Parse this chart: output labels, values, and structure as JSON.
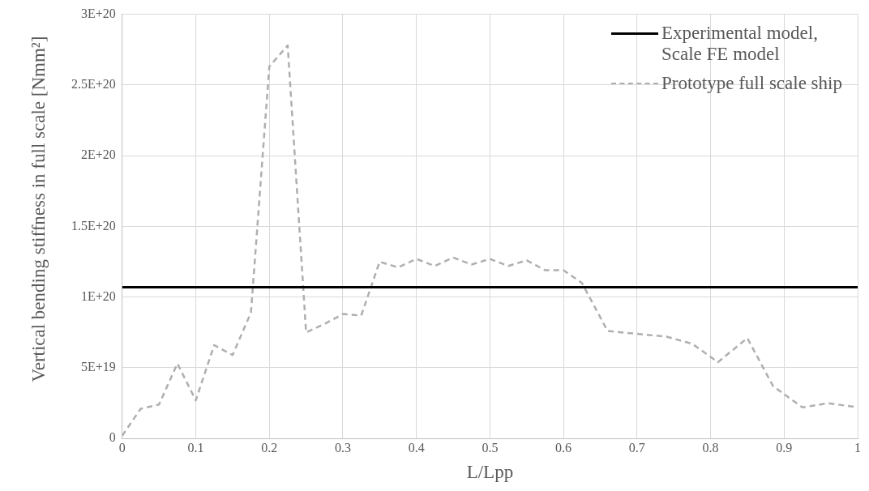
{
  "chart_data": {
    "type": "line",
    "xlabel": "L/Lpp",
    "ylabel": "Vertical bending stiffness in full scale [Nmm²]",
    "xlim": [
      0,
      1
    ],
    "xticks": [
      0,
      0.1,
      0.2,
      0.3,
      0.4,
      0.5,
      0.6,
      0.7,
      0.8,
      0.9,
      1
    ],
    "ylim": [
      0,
      3e+20
    ],
    "yticks": [
      {
        "value": 0,
        "label": "0"
      },
      {
        "value": 5e+19,
        "label": "5E+19"
      },
      {
        "value": 1e+20,
        "label": "1E+20"
      },
      {
        "value": 1.5e+20,
        "label": "1.5E+20"
      },
      {
        "value": 2e+20,
        "label": "2E+20"
      },
      {
        "value": 2.5e+20,
        "label": "2.5E+20"
      },
      {
        "value": 3e+20,
        "label": "3E+20"
      }
    ],
    "grid": true,
    "legend": "top right",
    "marker": "none",
    "series": [
      {
        "name": "Experimental model, Scale FE model",
        "color": "#000000",
        "line_style": "solid",
        "x": [
          0,
          1
        ],
        "values": [
          1.07e+20,
          1.07e+20
        ]
      },
      {
        "name": "Prototype full scale ship",
        "color": "#b0aeae",
        "line_style": "dashed",
        "x": [
          0,
          0.025,
          0.05,
          0.075,
          0.1,
          0.125,
          0.15,
          0.175,
          0.2,
          0.225,
          0.25,
          0.275,
          0.3,
          0.325,
          0.35,
          0.375,
          0.4,
          0.425,
          0.45,
          0.475,
          0.5,
          0.525,
          0.55,
          0.575,
          0.6,
          0.625,
          0.66,
          0.7,
          0.74,
          0.775,
          0.81,
          0.85,
          0.885,
          0.925,
          0.96,
          1
        ],
        "values": [
          2e+18,
          2.1e+19,
          2.4e+19,
          5.3e+19,
          2.7e+19,
          6.6e+19,
          5.9e+19,
          8.9e+19,
          2.63e+20,
          2.78e+20,
          7.5e+19,
          8.1e+19,
          8.8e+19,
          8.7e+19,
          1.25e+20,
          1.21e+20,
          1.27e+20,
          1.22e+20,
          1.28e+20,
          1.23e+20,
          1.27e+20,
          1.22e+20,
          1.26e+20,
          1.19e+20,
          1.19e+20,
          1.1e+20,
          7.6e+19,
          7.4e+19,
          7.2e+19,
          6.7e+19,
          5.4e+19,
          7.1e+19,
          3.7e+19,
          2.2e+19,
          2.5e+19,
          2.2e+19
        ]
      }
    ]
  }
}
